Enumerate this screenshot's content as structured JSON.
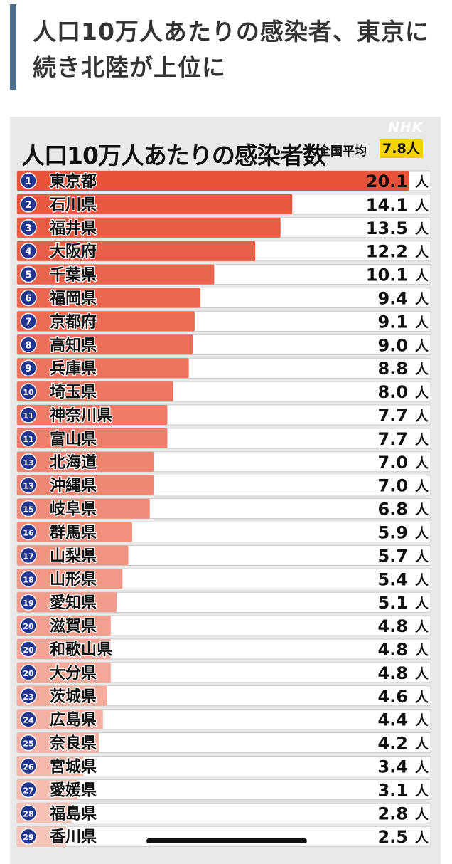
{
  "headline": {
    "title": "人口10万人あたりの感染者、東京に続き北陸が上位に"
  },
  "chart": {
    "title": "人口10万人あたりの感染者数",
    "national_average_label": "全国平均",
    "national_average_value": "7.8人",
    "logo": "NHK",
    "unit": "人"
  },
  "colors": {
    "bar_top": "#e8533a",
    "bar_bottom": "#f7c4b8",
    "rank_circle": "#22368f",
    "average_highlight": "#f5d200"
  },
  "chart_data": {
    "type": "bar",
    "orientation": "horizontal",
    "title": "人口10万人あたりの感染者数",
    "unit": "人",
    "national_average": 7.8,
    "xlim": [
      0,
      20.1
    ],
    "ranks": [
      1,
      2,
      3,
      4,
      5,
      6,
      7,
      8,
      9,
      10,
      11,
      11,
      13,
      13,
      15,
      16,
      17,
      18,
      19,
      20,
      20,
      20,
      23,
      24,
      25,
      26,
      27,
      28,
      29
    ],
    "categories": [
      "東京都",
      "石川県",
      "福井県",
      "大阪府",
      "千葉県",
      "福岡県",
      "京都府",
      "高知県",
      "兵庫県",
      "埼玉県",
      "神奈川県",
      "富山県",
      "北海道",
      "沖縄県",
      "岐阜県",
      "群馬県",
      "山梨県",
      "山形県",
      "愛知県",
      "滋賀県",
      "和歌山県",
      "大分県",
      "茨城県",
      "広島県",
      "奈良県",
      "宮城県",
      "愛媛県",
      "福島県",
      "香川県"
    ],
    "values": [
      20.1,
      14.1,
      13.5,
      12.2,
      10.1,
      9.4,
      9.1,
      9.0,
      8.8,
      8.0,
      7.7,
      7.7,
      7.0,
      7.0,
      6.8,
      5.9,
      5.7,
      5.4,
      5.1,
      4.8,
      4.8,
      4.8,
      4.6,
      4.4,
      4.2,
      3.4,
      3.1,
      2.8,
      2.5
    ],
    "value_labels": [
      "20.1",
      "14.1",
      "13.5",
      "12.2",
      "10.1",
      "9.4",
      "9.1",
      "9.0",
      "8.8",
      "8.0",
      "7.7",
      "7.7",
      "7.0",
      "7.0",
      "6.8",
      "5.9",
      "5.7",
      "5.4",
      "5.1",
      "4.8",
      "4.8",
      "4.8",
      "4.6",
      "4.4",
      "4.2",
      "3.4",
      "3.1",
      "2.8",
      "2.5"
    ]
  }
}
